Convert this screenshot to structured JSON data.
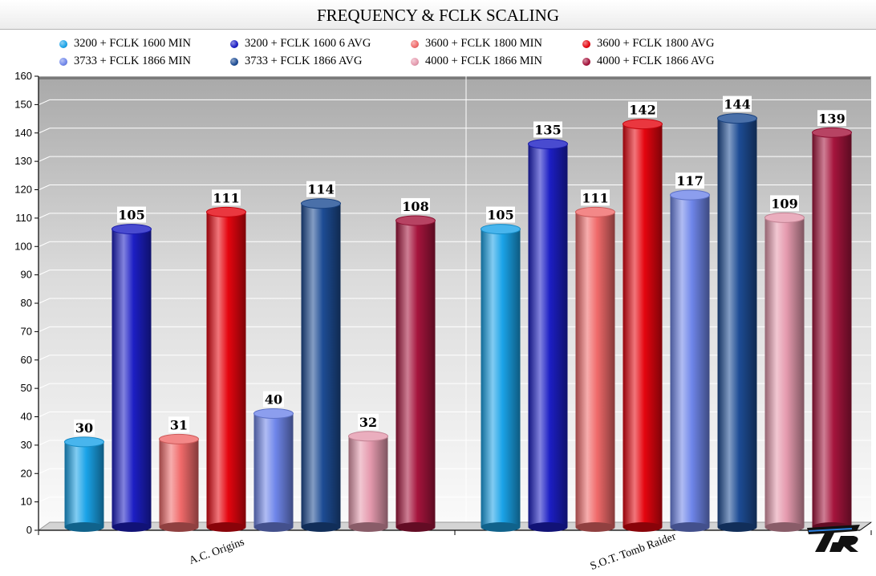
{
  "chart_data": {
    "type": "bar",
    "title": "FREQUENCY & FCLK SCALING",
    "categories": [
      "A.C. Origins",
      "S.O.T. Tomb Raider"
    ],
    "series": [
      {
        "name": "3200 + FCLK 1600 MIN",
        "values": [
          30,
          105
        ],
        "color": "#1aa3e8"
      },
      {
        "name": "3200 + FCLK 1600 6 AVG",
        "values": [
          105,
          135
        ],
        "color": "#1c1ec4"
      },
      {
        "name": "3600 + FCLK 1800 MIN",
        "values": [
          31,
          111
        ],
        "color": "#f06a6a"
      },
      {
        "name": "3600 + FCLK 1800 AVG",
        "values": [
          111,
          142
        ],
        "color": "#e5050f"
      },
      {
        "name": "3733 + FCLK 1866 MIN",
        "values": [
          40,
          117
        ],
        "color": "#6f86ea"
      },
      {
        "name": "3733 + FCLK 1866 AVG",
        "values": [
          114,
          144
        ],
        "color": "#1d4c94"
      },
      {
        "name": "4000 + FCLK 1866 MIN",
        "values": [
          32,
          109
        ],
        "color": "#e59aae"
      },
      {
        "name": "4000 + FCLK 1866 AVG",
        "values": [
          108,
          139
        ],
        "color": "#a5143c"
      }
    ],
    "ylim": [
      0,
      160
    ],
    "yticks": [
      0,
      10,
      20,
      30,
      40,
      50,
      60,
      70,
      80,
      90,
      100,
      110,
      120,
      130,
      140,
      150,
      160
    ],
    "xlabel": "",
    "ylabel": "",
    "grid": true,
    "legend": "top"
  },
  "logo": {
    "text": "TKR"
  }
}
